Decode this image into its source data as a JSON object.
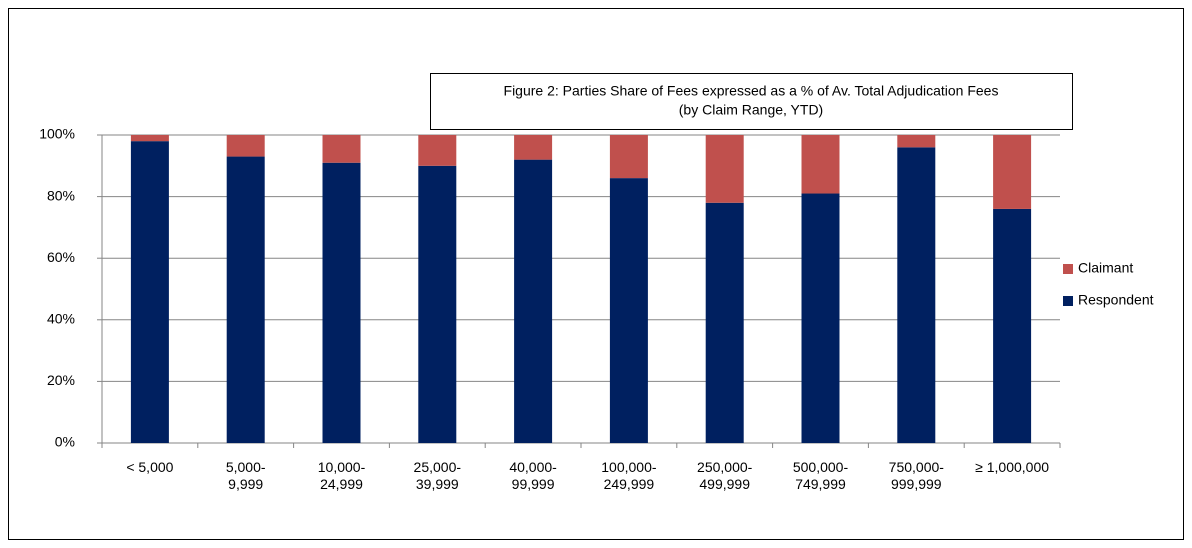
{
  "chart_data": {
    "type": "stacked_bar",
    "title": "Figure 2: Parties Share of Fees expressed as a % of Av. Total Adjudication Fees",
    "subtitle": "(by Claim Range, YTD)",
    "categories": [
      "< 5,000",
      "5,000-\n9,999",
      "10,000-\n24,999",
      "25,000-\n39,999",
      "40,000-\n99,999",
      "100,000-\n249,999",
      "250,000-\n499,999",
      "500,000-\n749,999",
      "750,000-\n999,999",
      "≥ 1,000,000"
    ],
    "series": [
      {
        "name": "Respondent",
        "color": "#002060",
        "values": [
          98,
          93,
          91,
          90,
          92,
          86,
          78,
          81,
          96,
          76
        ]
      },
      {
        "name": "Claimant",
        "color": "#c0504d",
        "values": [
          2,
          7,
          9,
          10,
          8,
          14,
          22,
          19,
          4,
          24
        ]
      }
    ],
    "ylim": [
      0,
      100
    ],
    "yticks": [
      {
        "value": 0,
        "label": "0%"
      },
      {
        "value": 20,
        "label": "20%"
      },
      {
        "value": 40,
        "label": "40%"
      },
      {
        "value": 60,
        "label": "60%"
      },
      {
        "value": 80,
        "label": "80%"
      },
      {
        "value": 100,
        "label": "100%"
      }
    ],
    "grid": true,
    "legend": "right"
  }
}
